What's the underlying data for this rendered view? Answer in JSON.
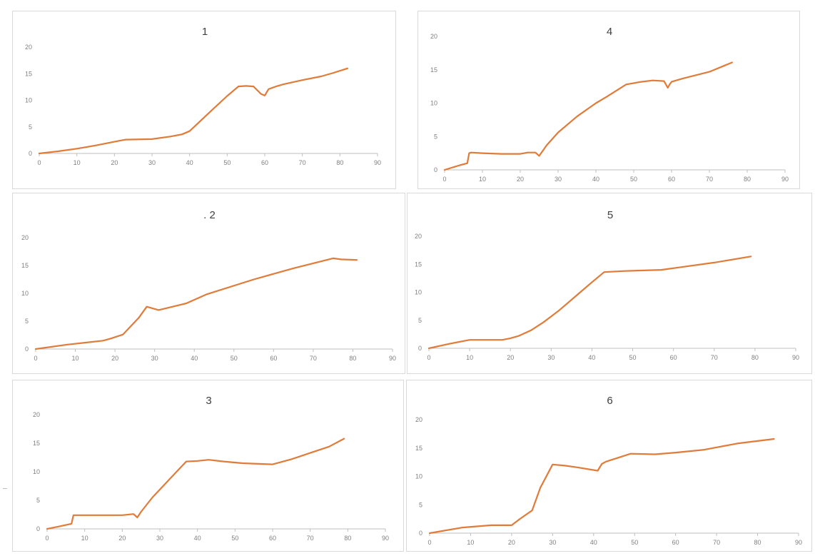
{
  "colors": {
    "line": "#e07b39",
    "axis": "#bfbfbf",
    "tick_text": "#7f7f7f",
    "title_text": "#404040",
    "border": "#d9d9d9"
  },
  "chart_data": [
    {
      "type": "line",
      "title": "1",
      "xlabel": "",
      "ylabel": "",
      "xlim": [
        0,
        90
      ],
      "ylim": [
        0,
        20
      ],
      "xticks": [
        "0",
        "10",
        "20",
        "30",
        "40",
        "50",
        "60",
        "70",
        "80",
        "90"
      ],
      "yticks": [
        "0",
        "5",
        "10",
        "15",
        "20"
      ],
      "grid": false,
      "series": [
        {
          "x": [
            0,
            5,
            10,
            15,
            20,
            23,
            30,
            35,
            38,
            40,
            43,
            46,
            50,
            53,
            55,
            57,
            59,
            60,
            61,
            63,
            65,
            70,
            75,
            78,
            82
          ],
          "y": [
            0,
            0.4,
            0.9,
            1.5,
            2.2,
            2.6,
            2.7,
            3.2,
            3.6,
            4.2,
            6.2,
            8.2,
            10.8,
            12.6,
            12.7,
            12.6,
            11.2,
            10.9,
            12.1,
            12.6,
            13,
            13.8,
            14.5,
            15.1,
            16
          ]
        }
      ]
    },
    {
      "type": "line",
      "title": "4",
      "xlabel": "",
      "ylabel": "",
      "xlim": [
        0,
        90
      ],
      "ylim": [
        0,
        20
      ],
      "xticks": [
        "0",
        "10",
        "20",
        "30",
        "40",
        "50",
        "60",
        "70",
        "80",
        "90"
      ],
      "yticks": [
        "0",
        "5",
        "10",
        "15",
        "20"
      ],
      "grid": false,
      "series": [
        {
          "x": [
            0,
            4,
            6,
            6.5,
            7,
            10,
            15,
            20,
            22,
            24,
            25,
            27,
            30,
            35,
            40,
            43,
            48,
            52,
            55,
            58,
            59,
            59.5,
            60,
            63,
            70,
            76
          ],
          "y": [
            0,
            0.7,
            1.0,
            2.5,
            2.6,
            2.5,
            2.4,
            2.4,
            2.6,
            2.6,
            2.1,
            3.7,
            5.6,
            8.0,
            10.0,
            11.0,
            12.8,
            13.2,
            13.4,
            13.3,
            12.3,
            12.8,
            13.2,
            13.7,
            14.7,
            16.1
          ]
        }
      ]
    },
    {
      "type": "line",
      "title": ". 2",
      "xlabel": "",
      "ylabel": "",
      "xlim": [
        0,
        90
      ],
      "ylim": [
        0,
        20
      ],
      "xticks": [
        "0",
        "10",
        "20",
        "30",
        "40",
        "50",
        "60",
        "70",
        "80",
        "90"
      ],
      "yticks": [
        "0",
        "5",
        "10",
        "15",
        "20"
      ],
      "grid": false,
      "series": [
        {
          "x": [
            0,
            8,
            17,
            19,
            22,
            26,
            28,
            31,
            38,
            43,
            55,
            65,
            75,
            77,
            81
          ],
          "y": [
            0,
            0.8,
            1.5,
            1.9,
            2.6,
            5.6,
            7.6,
            7.0,
            8.2,
            9.8,
            12.5,
            14.5,
            16.3,
            16.1,
            16.0
          ]
        }
      ]
    },
    {
      "type": "line",
      "title": "5",
      "xlabel": "",
      "ylabel": "",
      "xlim": [
        0,
        90
      ],
      "ylim": [
        0,
        20
      ],
      "xticks": [
        "0",
        "10",
        "20",
        "30",
        "40",
        "50",
        "60",
        "70",
        "80",
        "90"
      ],
      "yticks": [
        "0",
        "5",
        "10",
        "15",
        "20"
      ],
      "grid": false,
      "series": [
        {
          "x": [
            0,
            5,
            10,
            15,
            18,
            20,
            22,
            25,
            28,
            32,
            36,
            40,
            43,
            48,
            57,
            62,
            70,
            79
          ],
          "y": [
            0,
            0.8,
            1.5,
            1.5,
            1.5,
            1.8,
            2.2,
            3.2,
            4.6,
            6.8,
            9.3,
            11.8,
            13.6,
            13.8,
            14.0,
            14.5,
            15.3,
            16.4
          ]
        }
      ]
    },
    {
      "type": "line",
      "title": "3",
      "xlabel": "",
      "ylabel": "",
      "xlim": [
        0,
        90
      ],
      "ylim": [
        0,
        20
      ],
      "xticks": [
        "0",
        "10",
        "20",
        "30",
        "40",
        "50",
        "60",
        "70",
        "80",
        "90"
      ],
      "yticks": [
        "0",
        "5",
        "10",
        "15",
        "20"
      ],
      "grid": false,
      "series": [
        {
          "x": [
            0,
            3,
            6.5,
            7,
            10,
            15,
            20,
            23,
            24,
            25,
            28,
            33,
            37,
            40,
            43,
            47,
            52,
            60,
            65,
            70,
            75,
            79
          ],
          "y": [
            0,
            0.4,
            0.9,
            2.4,
            2.4,
            2.4,
            2.4,
            2.6,
            2.0,
            3.0,
            5.5,
            9.0,
            11.8,
            11.9,
            12.1,
            11.8,
            11.5,
            11.3,
            12.2,
            13.3,
            14.4,
            15.8
          ]
        }
      ]
    },
    {
      "type": "line",
      "title": "6",
      "xlabel": "",
      "ylabel": "",
      "xlim": [
        0,
        90
      ],
      "ylim": [
        0,
        20
      ],
      "xticks": [
        "0",
        "10",
        "20",
        "30",
        "40",
        "50",
        "60",
        "70",
        "80",
        "90"
      ],
      "yticks": [
        "0",
        "5",
        "10",
        "15",
        "20"
      ],
      "grid": false,
      "series": [
        {
          "x": [
            0,
            8,
            15,
            20,
            22,
            25,
            27,
            30,
            33,
            36,
            41,
            42,
            43,
            46,
            49,
            55,
            60,
            67,
            75,
            84
          ],
          "y": [
            0,
            1.0,
            1.4,
            1.4,
            2.5,
            4.0,
            8.0,
            12.1,
            11.9,
            11.6,
            11.0,
            12.2,
            12.6,
            13.3,
            14.0,
            13.9,
            14.2,
            14.7,
            15.8,
            16.6
          ]
        }
      ]
    }
  ]
}
